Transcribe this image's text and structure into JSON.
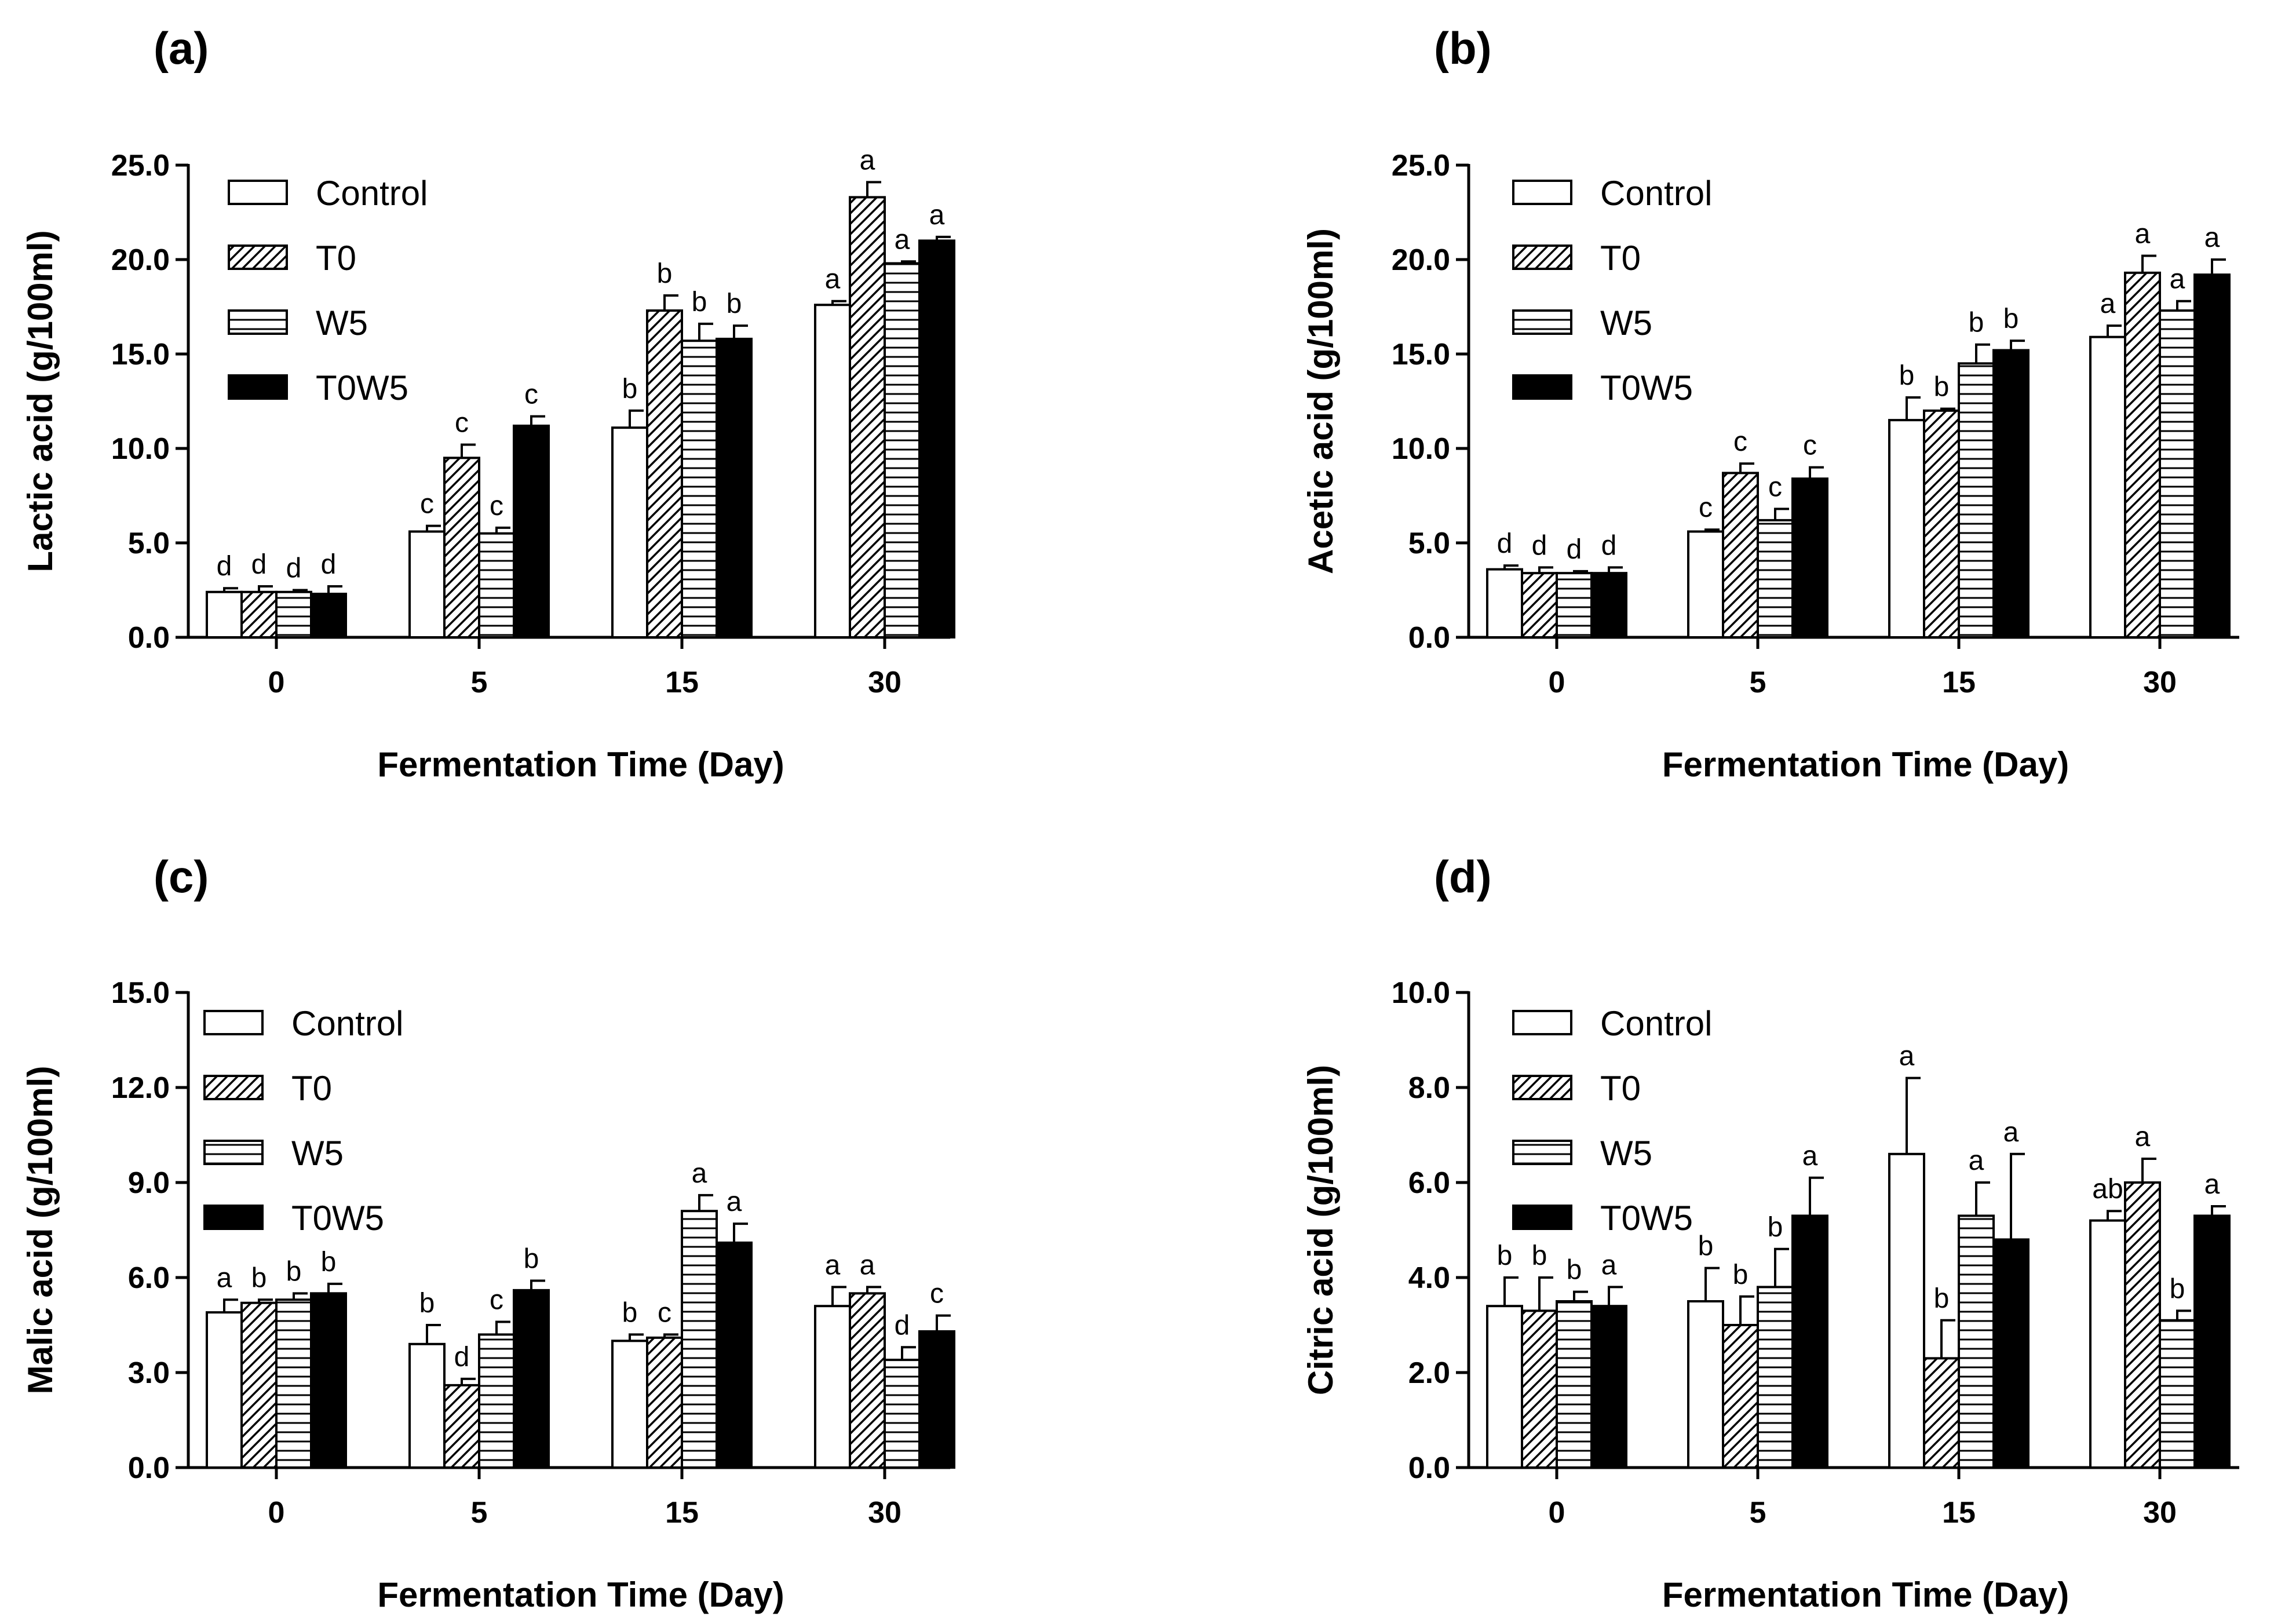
{
  "chart_data": [
    {
      "panel": "(a)",
      "type": "bar",
      "xlabel": "Fermentation Time (Day)",
      "ylabel": "Lactic acid (g/100ml)",
      "ylim": [
        0,
        25
      ],
      "yticks": [
        "0.0",
        "5.0",
        "10.0",
        "15.0",
        "20.0",
        "25.0"
      ],
      "categories": [
        "0",
        "5",
        "15",
        "30"
      ],
      "series": [
        {
          "name": "Control",
          "pattern": "empty",
          "values": [
            2.4,
            5.6,
            11.1,
            17.6
          ],
          "errors": [
            0.2,
            0.3,
            0.9,
            0.2
          ],
          "labels": [
            "d",
            "c",
            "b",
            "a"
          ]
        },
        {
          "name": "T0",
          "pattern": "diagonal",
          "values": [
            2.4,
            9.5,
            17.3,
            23.3
          ],
          "errors": [
            0.3,
            0.7,
            0.8,
            0.8
          ],
          "labels": [
            "d",
            "c",
            "b",
            "a"
          ]
        },
        {
          "name": "W5",
          "pattern": "horizontal",
          "values": [
            2.4,
            5.5,
            15.7,
            19.8
          ],
          "errors": [
            0.1,
            0.3,
            0.9,
            0.1
          ],
          "labels": [
            "d",
            "c",
            "b",
            "a"
          ]
        },
        {
          "name": "T0W5",
          "pattern": "solid",
          "values": [
            2.3,
            11.2,
            15.8,
            21.0
          ],
          "errors": [
            0.4,
            0.5,
            0.7,
            0.2
          ],
          "labels": [
            "d",
            "c",
            "b",
            "a"
          ]
        }
      ]
    },
    {
      "panel": "(b)",
      "type": "bar",
      "xlabel": "Fermentation Time (Day)",
      "ylabel": "Acetic acid (g/100ml)",
      "ylim": [
        0,
        25
      ],
      "yticks": [
        "0.0",
        "5.0",
        "10.0",
        "15.0",
        "20.0",
        "25.0"
      ],
      "categories": [
        "0",
        "5",
        "15",
        "30"
      ],
      "series": [
        {
          "name": "Control",
          "pattern": "empty",
          "values": [
            3.6,
            5.6,
            11.5,
            15.9
          ],
          "errors": [
            0.2,
            0.1,
            1.2,
            0.6
          ],
          "labels": [
            "d",
            "c",
            "b",
            "a"
          ]
        },
        {
          "name": "T0",
          "pattern": "diagonal",
          "values": [
            3.4,
            8.7,
            12.0,
            19.3
          ],
          "errors": [
            0.3,
            0.5,
            0.1,
            0.9
          ],
          "labels": [
            "d",
            "c",
            "b",
            "a"
          ]
        },
        {
          "name": "W5",
          "pattern": "horizontal",
          "values": [
            3.4,
            6.2,
            14.5,
            17.3
          ],
          "errors": [
            0.1,
            0.6,
            1.0,
            0.5
          ],
          "labels": [
            "d",
            "c",
            "b",
            "a"
          ]
        },
        {
          "name": "T0W5",
          "pattern": "solid",
          "values": [
            3.4,
            8.4,
            15.2,
            19.2
          ],
          "errors": [
            0.3,
            0.6,
            0.5,
            0.8
          ],
          "labels": [
            "d",
            "c",
            "b",
            "a"
          ]
        }
      ]
    },
    {
      "panel": "(c)",
      "type": "bar",
      "xlabel": "Fermentation Time (Day)",
      "ylabel": "Malic acid (g/100ml)",
      "ylim": [
        0,
        15
      ],
      "yticks": [
        "0.0",
        "3.0",
        "6.0",
        "9.0",
        "12.0",
        "15.0"
      ],
      "categories": [
        "0",
        "5",
        "15",
        "30"
      ],
      "series": [
        {
          "name": "Control",
          "pattern": "empty",
          "values": [
            4.9,
            3.9,
            4.0,
            5.1
          ],
          "errors": [
            0.4,
            0.6,
            0.2,
            0.6
          ],
          "labels": [
            "a",
            "b",
            "b",
            "a"
          ]
        },
        {
          "name": "T0",
          "pattern": "diagonal",
          "values": [
            5.2,
            2.6,
            4.1,
            5.5
          ],
          "errors": [
            0.1,
            0.2,
            0.1,
            0.2
          ],
          "labels": [
            "b",
            "d",
            "c",
            "a"
          ]
        },
        {
          "name": "W5",
          "pattern": "horizontal",
          "values": [
            5.3,
            4.2,
            8.1,
            3.4
          ],
          "errors": [
            0.2,
            0.4,
            0.5,
            0.4
          ],
          "labels": [
            "b",
            "c",
            "a",
            "d"
          ]
        },
        {
          "name": "T0W5",
          "pattern": "solid",
          "values": [
            5.5,
            5.6,
            7.1,
            4.3
          ],
          "errors": [
            0.3,
            0.3,
            0.6,
            0.5
          ],
          "labels": [
            "b",
            "b",
            "a",
            "c"
          ]
        }
      ]
    },
    {
      "panel": "(d)",
      "type": "bar",
      "xlabel": "Fermentation Time (Day)",
      "ylabel": "Citric acid (g/100ml)",
      "ylim": [
        0,
        10
      ],
      "yticks": [
        "0.0",
        "2.0",
        "4.0",
        "6.0",
        "8.0",
        "10.0"
      ],
      "categories": [
        "0",
        "5",
        "15",
        "30"
      ],
      "series": [
        {
          "name": "Control",
          "pattern": "empty",
          "values": [
            3.4,
            3.5,
            6.6,
            5.2
          ],
          "errors": [
            0.6,
            0.7,
            1.6,
            0.2
          ],
          "labels": [
            "b",
            "b",
            "a",
            "ab"
          ]
        },
        {
          "name": "T0",
          "pattern": "diagonal",
          "values": [
            3.3,
            3.0,
            2.3,
            6.0
          ],
          "errors": [
            0.7,
            0.6,
            0.8,
            0.5
          ],
          "labels": [
            "b",
            "b",
            "b",
            "a"
          ]
        },
        {
          "name": "W5",
          "pattern": "horizontal",
          "values": [
            3.5,
            3.8,
            5.3,
            3.1
          ],
          "errors": [
            0.2,
            0.8,
            0.7,
            0.2
          ],
          "labels": [
            "b",
            "b",
            "a",
            "b"
          ]
        },
        {
          "name": "T0W5",
          "pattern": "solid",
          "values": [
            3.4,
            5.3,
            4.8,
            5.3
          ],
          "errors": [
            0.4,
            0.8,
            1.8,
            0.2
          ],
          "labels": [
            "a",
            "a",
            "a",
            "a"
          ]
        }
      ]
    }
  ]
}
